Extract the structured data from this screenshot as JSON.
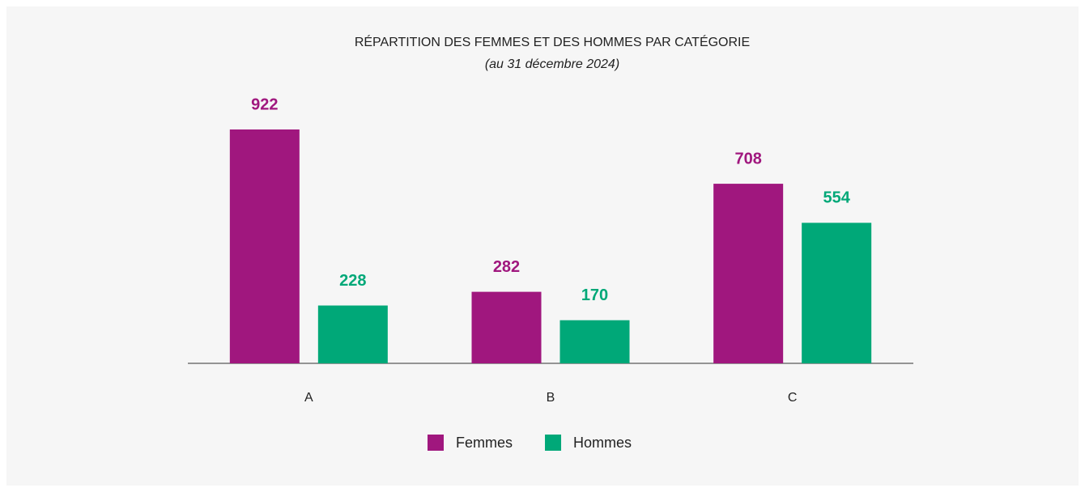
{
  "chart_data": {
    "type": "bar",
    "title": "RÉPARTITION DES FEMMES ET DES HOMMES PAR CATÉGORIE",
    "subtitle": "(au 31 décembre 2024)",
    "categories": [
      "A",
      "B",
      "C"
    ],
    "series": [
      {
        "name": "Femmes",
        "color": "#a0177e",
        "values": [
          922,
          282,
          708
        ]
      },
      {
        "name": "Hommes",
        "color": "#00a878",
        "values": [
          228,
          170,
          554
        ]
      }
    ],
    "legend": "bottom"
  }
}
